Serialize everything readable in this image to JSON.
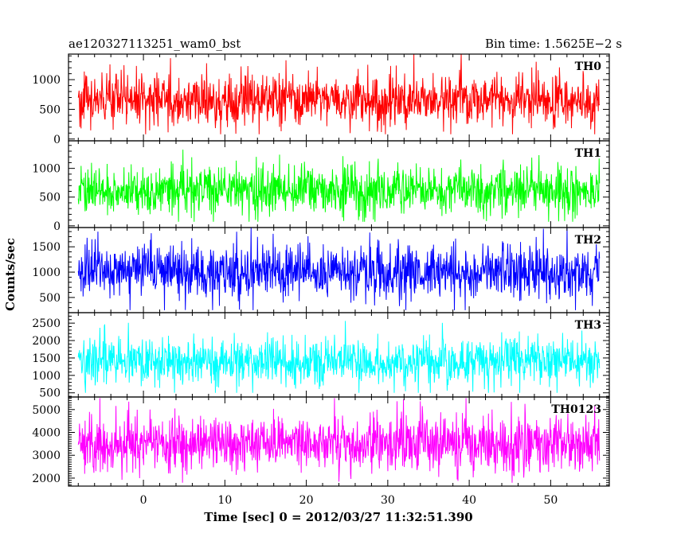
{
  "header": {
    "left_title": "ae120327113251_wam0_bst",
    "right_title": "Bin time: 1.5625E−2 s"
  },
  "chart_data": {
    "type": "line",
    "title": "ae120327113251_wam0_bst",
    "subtitle": "Bin time: 1.5625E−2 s",
    "xlabel": "Time [sec] 0 = 2012/03/27 11:32:51.390",
    "ylabel": "Counts/sec",
    "xlim": [
      -9.2,
      57.2
    ],
    "x_data_range": [
      -8.0,
      56.0
    ],
    "x_ticks": [
      0,
      10,
      20,
      30,
      40,
      50
    ],
    "x_tick_labels": [
      "0",
      "10",
      "20",
      "30",
      "40",
      "50"
    ],
    "bin_time_s": 0.015625,
    "grid": false,
    "panels": [
      {
        "name": "TH0",
        "color": "#ff0000",
        "ylim": [
          -30,
          1430
        ],
        "y_ticks": [
          0,
          500,
          1000
        ],
        "y_tick_labels": [
          "0",
          "500",
          "1000"
        ],
        "mean": 650,
        "spread": 210,
        "min": 80,
        "max": 1450
      },
      {
        "name": "TH1",
        "color": "#00ff00",
        "ylim": [
          -30,
          1480
        ],
        "y_ticks": [
          0,
          500,
          1000
        ],
        "y_tick_labels": [
          "0",
          "500",
          "1000"
        ],
        "mean": 620,
        "spread": 210,
        "min": 70,
        "max": 1480
      },
      {
        "name": "TH2",
        "color": "#0000ff",
        "ylim": [
          200,
          1880
        ],
        "y_ticks": [
          500,
          1000,
          1500
        ],
        "y_tick_labels": [
          "500",
          "1000",
          "1500"
        ],
        "mean": 1000,
        "spread": 260,
        "min": 250,
        "max": 1880
      },
      {
        "name": "TH3",
        "color": "#00ffff",
        "ylim": [
          380,
          2800
        ],
        "y_ticks": [
          500,
          1000,
          1500,
          2000,
          2500
        ],
        "y_tick_labels": [
          "500",
          "1000",
          "1500",
          "2000",
          "2500"
        ],
        "mean": 1400,
        "spread": 330,
        "min": 500,
        "max": 2800
      },
      {
        "name": "TH0123",
        "color": "#ff00ff",
        "ylim": [
          1650,
          5550
        ],
        "y_ticks": [
          2000,
          3000,
          4000,
          5000
        ],
        "y_tick_labels": [
          "2000",
          "3000",
          "4000",
          "5000"
        ],
        "mean": 3500,
        "spread": 600,
        "min": 1800,
        "max": 5500
      }
    ]
  }
}
